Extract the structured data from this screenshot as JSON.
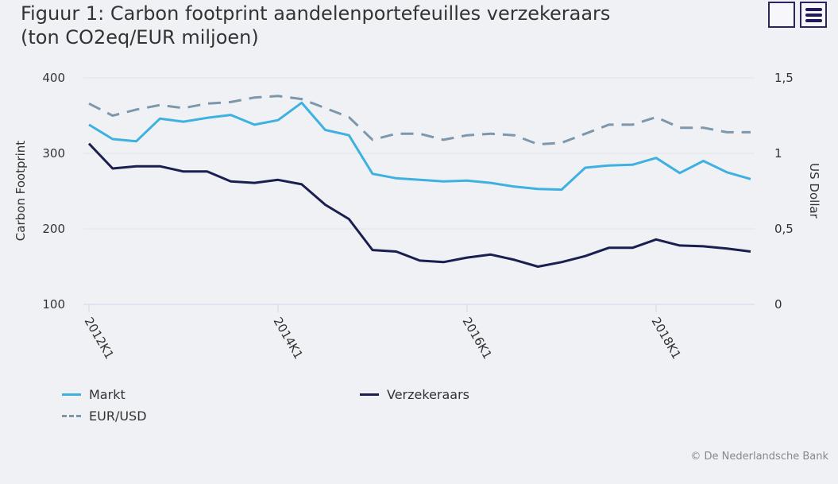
{
  "title": "Figuur 1: Carbon footprint aandelenportefeuilles verzekeraars\n(ton CO2eq/EUR miljoen)",
  "credit": "© De Nederlandsche Bank",
  "chart_data": {
    "type": "line",
    "title": "Figuur 1: Carbon footprint aandelenportefeuilles verzekeraars (ton CO2eq/EUR miljoen)",
    "ylabel": "Carbon Footprint",
    "y2label": "US Dollar",
    "ylim": [
      100,
      400
    ],
    "y2lim": [
      0,
      1.5
    ],
    "yticks": [
      "100",
      "200",
      "300",
      "400"
    ],
    "y2ticks": [
      "0",
      "0,5",
      "1",
      "1,5"
    ],
    "xticks": [
      "2012K1",
      "2014K1",
      "2016K1",
      "2018K1"
    ],
    "grid": true,
    "legend_position": "bottom",
    "x_start": "2012K1",
    "x_frequency": "quarterly",
    "series": [
      {
        "name": "Markt",
        "axis": "left",
        "color": "#3eb1e0",
        "dash": false,
        "values": [
          338,
          319,
          316,
          346,
          342,
          347,
          351,
          338,
          344,
          367,
          331,
          324,
          273,
          267,
          265,
          263,
          264,
          261,
          256,
          253,
          252,
          281,
          284,
          285,
          294,
          274,
          290,
          275,
          266
        ]
      },
      {
        "name": "Verzekeraars",
        "axis": "left",
        "color": "#1a1f4f",
        "dash": false,
        "values": [
          313,
          280,
          283,
          283,
          276,
          276,
          263,
          261,
          265,
          259,
          232,
          213,
          172,
          170,
          158,
          156,
          162,
          166,
          159,
          150,
          156,
          164,
          175,
          175,
          186,
          178,
          177,
          174,
          170
        ]
      },
      {
        "name": "EUR/USD",
        "axis": "right",
        "color": "#7f97ab",
        "dash": true,
        "values": [
          1.33,
          1.25,
          1.29,
          1.32,
          1.3,
          1.33,
          1.34,
          1.37,
          1.38,
          1.36,
          1.3,
          1.24,
          1.09,
          1.13,
          1.13,
          1.09,
          1.12,
          1.13,
          1.12,
          1.06,
          1.07,
          1.13,
          1.19,
          1.19,
          1.24,
          1.17,
          1.17,
          1.14,
          1.14
        ]
      }
    ]
  }
}
